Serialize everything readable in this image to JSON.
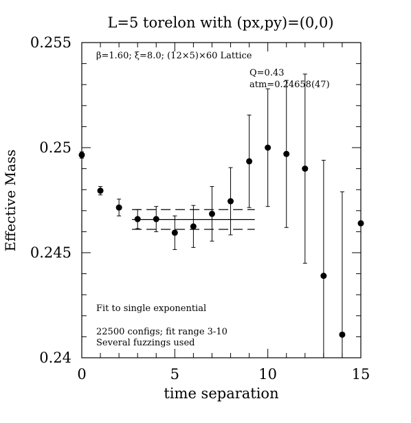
{
  "chart_data": {
    "type": "scatter",
    "title": "L=5 torelon with (px,py)=(0,0)",
    "xlabel": "time separation",
    "ylabel": "Effective Mass",
    "xlim": [
      0,
      15
    ],
    "ylim": [
      0.24,
      0.255
    ],
    "x_ticks": [
      0,
      5,
      10,
      15
    ],
    "x_tick_labels": [
      "0",
      "5",
      "10",
      "15"
    ],
    "y_ticks": [
      0.24,
      0.245,
      0.25,
      0.255
    ],
    "y_tick_labels": [
      "0.24",
      "0.245",
      "0.25",
      "0.255"
    ],
    "grid": false,
    "series": [
      {
        "name": "",
        "points": [
          {
            "x": 0,
            "y": 0.24965,
            "err": 0.00015
          },
          {
            "x": 1,
            "y": 0.24795,
            "err": 0.0002
          },
          {
            "x": 2,
            "y": 0.24715,
            "err": 0.0004
          },
          {
            "x": 3,
            "y": 0.2466,
            "err": 0.00045
          },
          {
            "x": 4,
            "y": 0.2466,
            "err": 0.0006
          },
          {
            "x": 5,
            "y": 0.24595,
            "err": 0.0008
          },
          {
            "x": 6,
            "y": 0.24625,
            "err": 0.001
          },
          {
            "x": 7,
            "y": 0.24685,
            "err": 0.0013
          },
          {
            "x": 8,
            "y": 0.24745,
            "err": 0.0016
          },
          {
            "x": 9,
            "y": 0.24935,
            "err": 0.0022
          },
          {
            "x": 10,
            "y": 0.25,
            "err": 0.0028
          },
          {
            "x": 11,
            "y": 0.2497,
            "err": 0.0035
          },
          {
            "x": 12,
            "y": 0.249,
            "err": 0.0045
          },
          {
            "x": 13,
            "y": 0.2439,
            "err": 0.0055
          },
          {
            "x": 14,
            "y": 0.2411,
            "err": 0.0068
          },
          {
            "x": 15,
            "y": 0.2464,
            "err": 0.009
          }
        ]
      }
    ],
    "fit": {
      "x_range": [
        2.7,
        9.3
      ],
      "value": 0.24658,
      "upper": 0.24705,
      "lower": 0.24611
    },
    "annotations": {
      "lattice": "β=1.60; ξ=8.0; (12×5)×60 Lattice",
      "q_value": "Q=0.43",
      "mass": "atm=0.24658(47)",
      "fit_type": "Fit to single exponential",
      "configs": "22500 configs; fit range 3-10",
      "fuzzings": "Several fuzzings used"
    }
  }
}
